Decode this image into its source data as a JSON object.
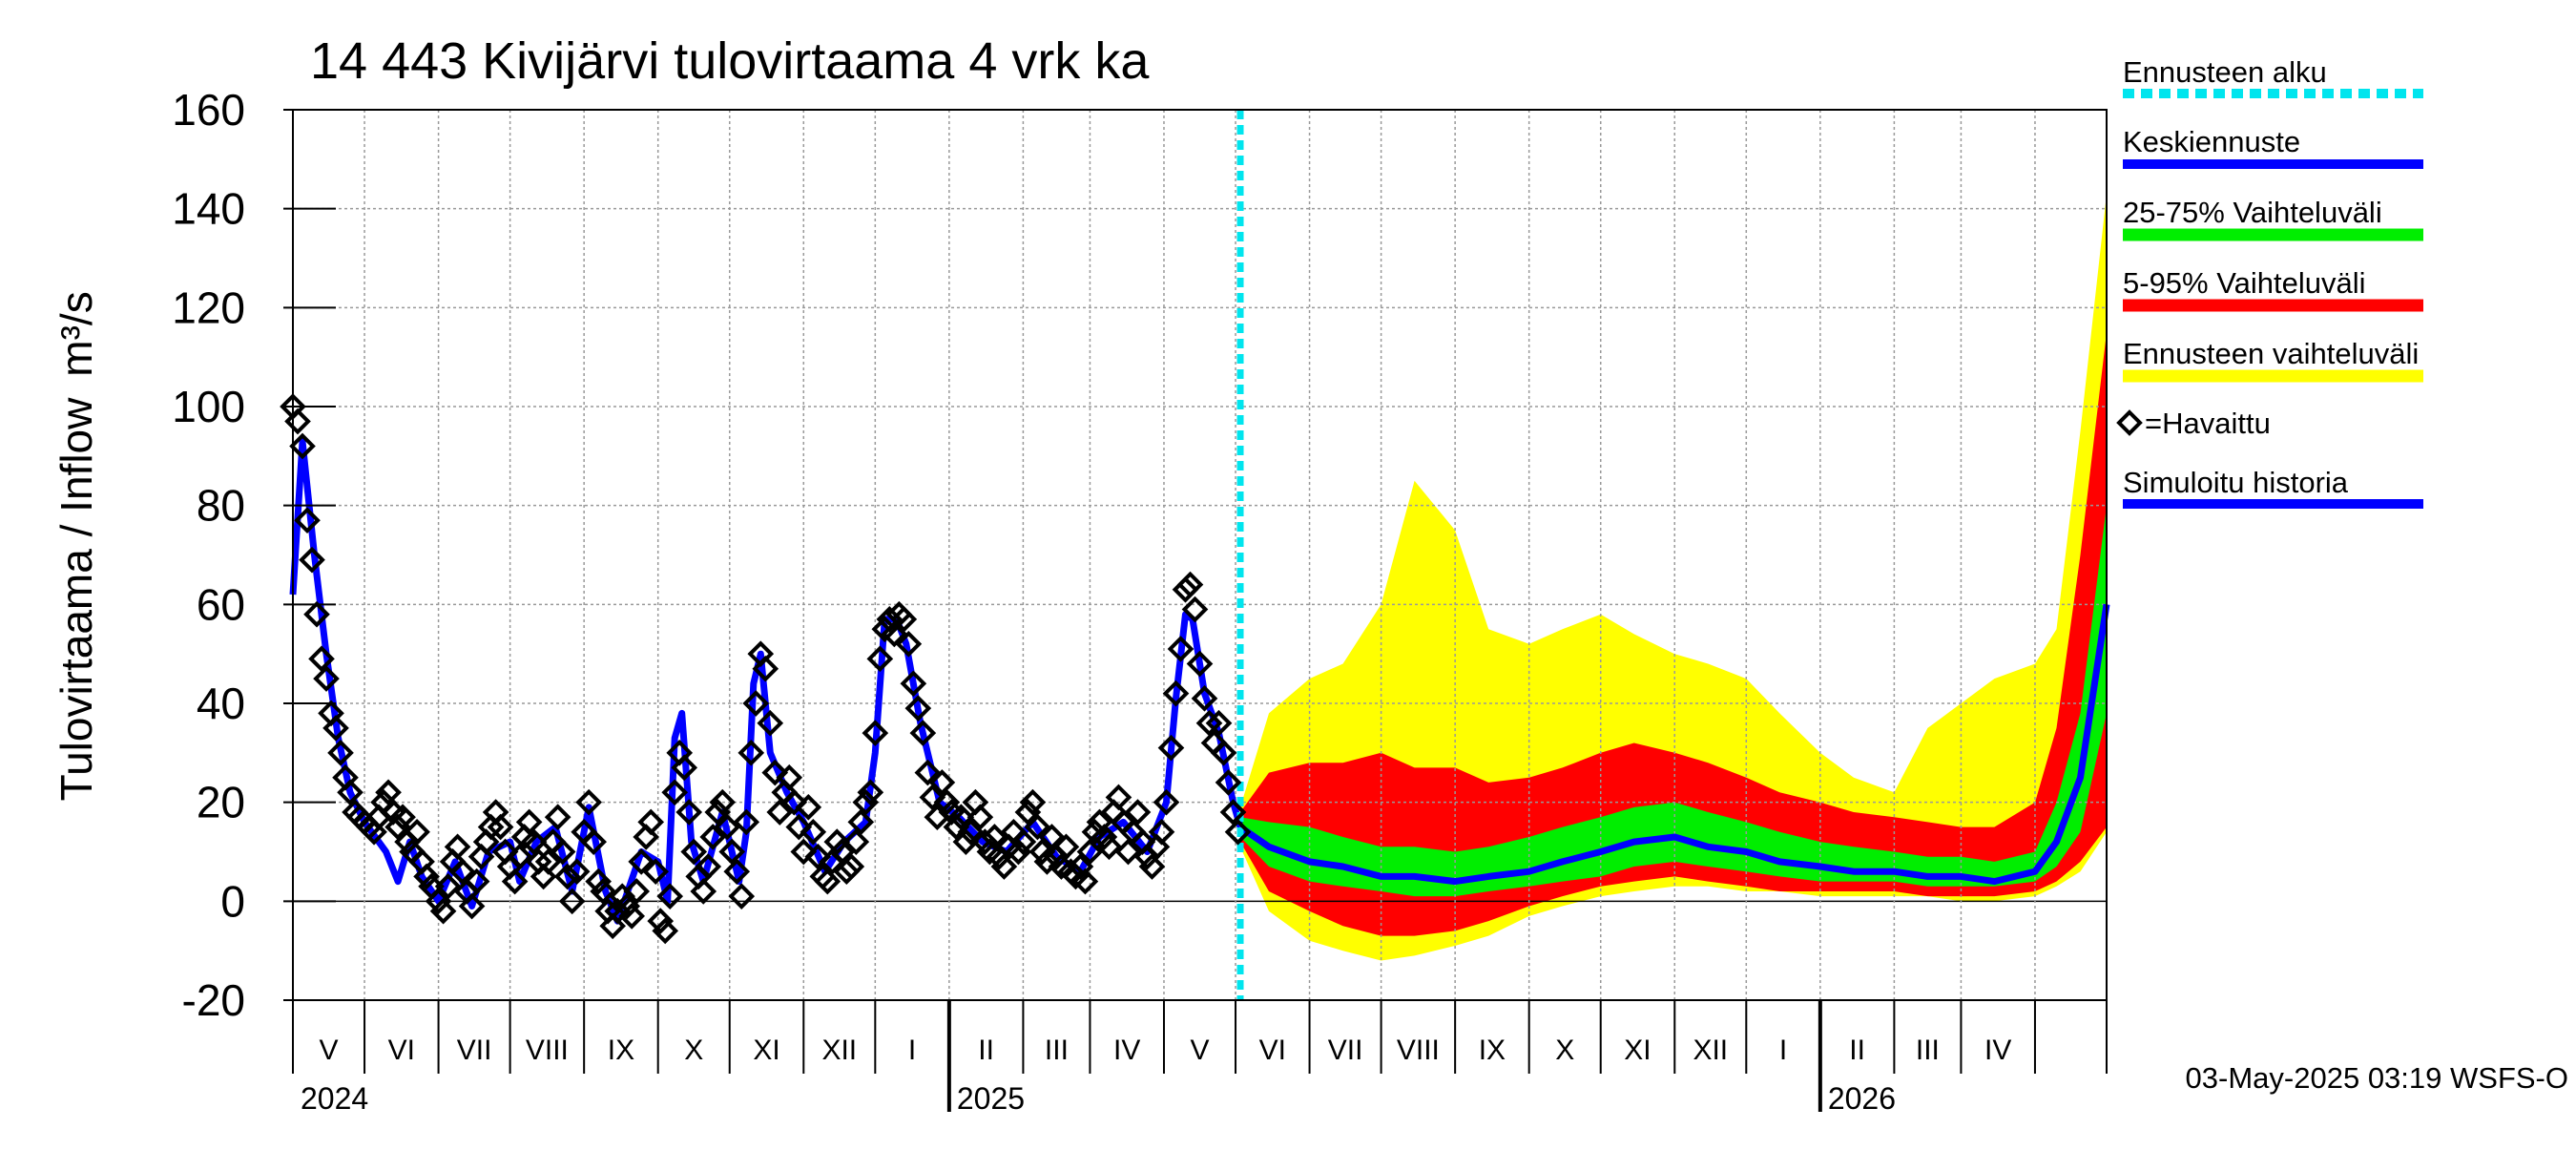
{
  "chart_data": {
    "type": "area",
    "title": "14 443 Kivijärvi tulovirtaama 4 vrk ka",
    "ylabel": "Tulovirtaama / Inflow",
    "yunit": "m³/s",
    "ylim": [
      -20,
      160
    ],
    "yticks": [
      "-20",
      "0",
      "20",
      "40",
      "60",
      "80",
      "100",
      "120",
      "140",
      "160"
    ],
    "xlim": [
      "2024-04-01",
      "2026-05-01"
    ],
    "month_labels": [
      "V",
      "VI",
      "VII",
      "VIII",
      "IX",
      "X",
      "XI",
      "XII",
      "I",
      "II",
      "III",
      "IV",
      "V",
      "VI",
      "VII",
      "VIII",
      "IX",
      "X",
      "XI",
      "XII",
      "I",
      "II",
      "III",
      "IV"
    ],
    "year_labels": [
      "2024",
      "2025",
      "2026"
    ],
    "grid": true,
    "legend_position": "right",
    "forecast_start": "2025-05-03",
    "legend": [
      {
        "label": "Ennusteen alku",
        "color": "#00e5ee",
        "style": "dashed"
      },
      {
        "label": "Keskiennuste",
        "color": "#0000ff",
        "style": "line"
      },
      {
        "label": "25-75% Vaihteluväli",
        "color": "#00ee00",
        "style": "band"
      },
      {
        "label": "5-95% Vaihteluväli",
        "color": "#ff0000",
        "style": "band"
      },
      {
        "label": "Ennusteen vaihteluväli",
        "color": "#ffff00",
        "style": "band"
      },
      {
        "label": "=Havaittu",
        "color": "#000000",
        "style": "marker"
      },
      {
        "label": "Simuloitu historia",
        "color": "#0000ff",
        "style": "line"
      }
    ],
    "footer": "03-May-2025 03:19 WSFS-O",
    "colors": {
      "sim": "#0000ff",
      "median": "#0000ff",
      "p2575": "#00ee00",
      "p595": "#ff0000",
      "full": "#ffff00",
      "forecast_start": "#00e5ee",
      "grid": "#999999"
    },
    "observed": [
      [
        "2024-04-01",
        100
      ],
      [
        "2024-04-03",
        97
      ],
      [
        "2024-04-05",
        92
      ],
      [
        "2024-04-07",
        77
      ],
      [
        "2024-04-09",
        69
      ],
      [
        "2024-04-11",
        58
      ],
      [
        "2024-04-13",
        49
      ],
      [
        "2024-04-15",
        45
      ],
      [
        "2024-04-17",
        38
      ],
      [
        "2024-04-19",
        35
      ],
      [
        "2024-04-21",
        30
      ],
      [
        "2024-04-23",
        25
      ],
      [
        "2024-04-25",
        22
      ],
      [
        "2024-04-27",
        18
      ],
      [
        "2024-04-29",
        17
      ],
      [
        "2024-05-01",
        16
      ],
      [
        "2024-05-03",
        15
      ],
      [
        "2024-05-05",
        14
      ],
      [
        "2024-05-07",
        17
      ],
      [
        "2024-05-09",
        20
      ],
      [
        "2024-05-11",
        22
      ],
      [
        "2024-05-13",
        18
      ],
      [
        "2024-05-15",
        15
      ],
      [
        "2024-05-17",
        17
      ],
      [
        "2024-05-19",
        12
      ],
      [
        "2024-05-21",
        10
      ],
      [
        "2024-05-23",
        14
      ],
      [
        "2024-05-25",
        8
      ],
      [
        "2024-05-27",
        5
      ],
      [
        "2024-05-29",
        3
      ],
      [
        "2024-06-01",
        0
      ],
      [
        "2024-06-03",
        -2
      ],
      [
        "2024-06-05",
        3
      ],
      [
        "2024-06-07",
        8
      ],
      [
        "2024-06-09",
        11
      ],
      [
        "2024-06-11",
        6
      ],
      [
        "2024-06-13",
        2
      ],
      [
        "2024-06-15",
        -1
      ],
      [
        "2024-06-17",
        4
      ],
      [
        "2024-06-19",
        9
      ],
      [
        "2024-06-21",
        12
      ],
      [
        "2024-06-23",
        15
      ],
      [
        "2024-06-25",
        18
      ],
      [
        "2024-06-27",
        15
      ],
      [
        "2024-06-29",
        10
      ],
      [
        "2024-07-01",
        7
      ],
      [
        "2024-07-03",
        4
      ],
      [
        "2024-07-05",
        9
      ],
      [
        "2024-07-07",
        13
      ],
      [
        "2024-07-09",
        16
      ],
      [
        "2024-07-11",
        12
      ],
      [
        "2024-07-13",
        8
      ],
      [
        "2024-07-15",
        5
      ],
      [
        "2024-07-17",
        8
      ],
      [
        "2024-07-19",
        12
      ],
      [
        "2024-07-21",
        17
      ],
      [
        "2024-07-23",
        10
      ],
      [
        "2024-07-25",
        5
      ],
      [
        "2024-07-27",
        0
      ],
      [
        "2024-07-29",
        6
      ],
      [
        "2024-08-01",
        14
      ],
      [
        "2024-08-03",
        20
      ],
      [
        "2024-08-05",
        12
      ],
      [
        "2024-08-07",
        4
      ],
      [
        "2024-08-09",
        2
      ],
      [
        "2024-08-11",
        -2
      ],
      [
        "2024-08-13",
        -5
      ],
      [
        "2024-08-15",
        -2
      ],
      [
        "2024-08-17",
        1
      ],
      [
        "2024-08-19",
        -1
      ],
      [
        "2024-08-21",
        -3
      ],
      [
        "2024-08-23",
        2
      ],
      [
        "2024-08-25",
        8
      ],
      [
        "2024-08-27",
        13
      ],
      [
        "2024-08-29",
        16
      ],
      [
        "2024-08-31",
        6
      ],
      [
        "2024-09-02",
        -4
      ],
      [
        "2024-09-04",
        -6
      ],
      [
        "2024-09-06",
        1
      ],
      [
        "2024-09-08",
        22
      ],
      [
        "2024-09-10",
        30
      ],
      [
        "2024-09-12",
        27
      ],
      [
        "2024-09-14",
        18
      ],
      [
        "2024-09-16",
        10
      ],
      [
        "2024-09-18",
        5
      ],
      [
        "2024-09-20",
        2
      ],
      [
        "2024-09-22",
        7
      ],
      [
        "2024-09-24",
        13
      ],
      [
        "2024-09-26",
        18
      ],
      [
        "2024-09-28",
        20
      ],
      [
        "2024-09-30",
        15
      ],
      [
        "2024-10-02",
        10
      ],
      [
        "2024-10-04",
        6
      ],
      [
        "2024-10-06",
        1
      ],
      [
        "2024-10-08",
        16
      ],
      [
        "2024-10-10",
        30
      ],
      [
        "2024-10-12",
        40
      ],
      [
        "2024-10-14",
        50
      ],
      [
        "2024-10-16",
        47
      ],
      [
        "2024-10-18",
        36
      ],
      [
        "2024-10-20",
        26
      ],
      [
        "2024-10-22",
        18
      ],
      [
        "2024-10-24",
        22
      ],
      [
        "2024-10-26",
        25
      ],
      [
        "2024-10-28",
        20
      ],
      [
        "2024-10-30",
        15
      ],
      [
        "2024-11-01",
        10
      ],
      [
        "2024-11-03",
        19
      ],
      [
        "2024-11-05",
        14
      ],
      [
        "2024-11-07",
        9
      ],
      [
        "2024-11-09",
        5
      ],
      [
        "2024-11-11",
        4
      ],
      [
        "2024-11-13",
        8
      ],
      [
        "2024-11-15",
        12
      ],
      [
        "2024-11-17",
        10
      ],
      [
        "2024-11-19",
        6
      ],
      [
        "2024-11-21",
        7
      ],
      [
        "2024-11-23",
        12
      ],
      [
        "2024-11-25",
        16
      ],
      [
        "2024-11-27",
        20
      ],
      [
        "2024-11-29",
        22
      ],
      [
        "2024-12-01",
        34
      ],
      [
        "2024-12-03",
        49
      ],
      [
        "2024-12-05",
        55
      ],
      [
        "2024-12-07",
        57
      ],
      [
        "2024-12-09",
        54
      ],
      [
        "2024-12-11",
        58
      ],
      [
        "2024-12-13",
        57
      ],
      [
        "2024-12-15",
        52
      ],
      [
        "2024-12-17",
        44
      ],
      [
        "2024-12-19",
        39
      ],
      [
        "2024-12-21",
        34
      ],
      [
        "2024-12-23",
        26
      ],
      [
        "2024-12-25",
        21
      ],
      [
        "2024-12-27",
        17
      ],
      [
        "2024-12-29",
        24
      ],
      [
        "2024-12-31",
        20
      ],
      [
        "2025-01-02",
        18
      ],
      [
        "2025-01-04",
        15
      ],
      [
        "2025-01-06",
        17
      ],
      [
        "2025-01-08",
        12
      ],
      [
        "2025-01-10",
        14
      ],
      [
        "2025-01-12",
        20
      ],
      [
        "2025-01-14",
        17
      ],
      [
        "2025-01-16",
        12
      ],
      [
        "2025-01-18",
        10
      ],
      [
        "2025-01-20",
        13
      ],
      [
        "2025-01-22",
        9
      ],
      [
        "2025-01-24",
        7
      ],
      [
        "2025-01-26",
        11
      ],
      [
        "2025-01-28",
        14
      ],
      [
        "2025-01-30",
        10
      ],
      [
        "2025-02-01",
        12
      ],
      [
        "2025-02-03",
        18
      ],
      [
        "2025-02-05",
        20
      ],
      [
        "2025-02-07",
        15
      ],
      [
        "2025-02-09",
        10
      ],
      [
        "2025-02-11",
        8
      ],
      [
        "2025-02-13",
        13
      ],
      [
        "2025-02-15",
        9
      ],
      [
        "2025-02-17",
        7
      ],
      [
        "2025-02-19",
        11
      ],
      [
        "2025-02-21",
        6
      ],
      [
        "2025-02-23",
        5
      ],
      [
        "2025-02-25",
        7
      ],
      [
        "2025-02-27",
        4
      ],
      [
        "2025-03-01",
        10
      ],
      [
        "2025-03-03",
        14
      ],
      [
        "2025-03-05",
        16
      ],
      [
        "2025-03-07",
        13
      ],
      [
        "2025-03-09",
        11
      ],
      [
        "2025-03-11",
        18
      ],
      [
        "2025-03-13",
        21
      ],
      [
        "2025-03-15",
        16
      ],
      [
        "2025-03-17",
        10
      ],
      [
        "2025-03-19",
        14
      ],
      [
        "2025-03-21",
        18
      ],
      [
        "2025-03-23",
        12
      ],
      [
        "2025-03-25",
        9
      ],
      [
        "2025-03-27",
        7
      ],
      [
        "2025-03-29",
        11
      ],
      [
        "2025-03-31",
        14
      ],
      [
        "2025-04-02",
        20
      ],
      [
        "2025-04-04",
        31
      ],
      [
        "2025-04-06",
        42
      ],
      [
        "2025-04-08",
        51
      ],
      [
        "2025-04-10",
        63
      ],
      [
        "2025-04-12",
        64
      ],
      [
        "2025-04-14",
        59
      ],
      [
        "2025-04-16",
        48
      ],
      [
        "2025-04-18",
        41
      ],
      [
        "2025-04-20",
        36
      ],
      [
        "2025-04-22",
        32
      ],
      [
        "2025-04-24",
        36
      ],
      [
        "2025-04-26",
        30
      ],
      [
        "2025-04-28",
        24
      ],
      [
        "2025-04-30",
        18
      ],
      [
        "2025-05-02",
        14
      ]
    ],
    "simulated": [
      [
        "2024-04-01",
        62
      ],
      [
        "2024-04-05",
        93
      ],
      [
        "2024-04-10",
        70
      ],
      [
        "2024-04-15",
        50
      ],
      [
        "2024-04-20",
        33
      ],
      [
        "2024-04-25",
        22
      ],
      [
        "2024-05-01",
        16
      ],
      [
        "2024-05-10",
        10
      ],
      [
        "2024-05-15",
        4
      ],
      [
        "2024-05-20",
        12
      ],
      [
        "2024-05-25",
        5
      ],
      [
        "2024-06-01",
        0
      ],
      [
        "2024-06-08",
        8
      ],
      [
        "2024-06-15",
        -1
      ],
      [
        "2024-06-22",
        10
      ],
      [
        "2024-07-01",
        12
      ],
      [
        "2024-07-05",
        4
      ],
      [
        "2024-07-12",
        12
      ],
      [
        "2024-07-20",
        15
      ],
      [
        "2024-07-27",
        2
      ],
      [
        "2024-08-03",
        19
      ],
      [
        "2024-08-10",
        2
      ],
      [
        "2024-08-15",
        -4
      ],
      [
        "2024-08-25",
        10
      ],
      [
        "2024-09-01",
        8
      ],
      [
        "2024-09-05",
        0
      ],
      [
        "2024-09-08",
        33
      ],
      [
        "2024-09-11",
        38
      ],
      [
        "2024-09-15",
        12
      ],
      [
        "2024-09-20",
        4
      ],
      [
        "2024-09-28",
        18
      ],
      [
        "2024-10-05",
        4
      ],
      [
        "2024-10-08",
        14
      ],
      [
        "2024-10-11",
        44
      ],
      [
        "2024-10-14",
        50
      ],
      [
        "2024-10-18",
        30
      ],
      [
        "2024-10-25",
        22
      ],
      [
        "2024-11-01",
        16
      ],
      [
        "2024-11-10",
        6
      ],
      [
        "2024-11-18",
        12
      ],
      [
        "2024-11-27",
        16
      ],
      [
        "2024-12-01",
        30
      ],
      [
        "2024-12-05",
        57
      ],
      [
        "2024-12-10",
        57
      ],
      [
        "2024-12-14",
        52
      ],
      [
        "2024-12-20",
        36
      ],
      [
        "2024-12-28",
        20
      ],
      [
        "2025-01-05",
        17
      ],
      [
        "2025-01-15",
        12
      ],
      [
        "2025-01-25",
        10
      ],
      [
        "2025-02-05",
        16
      ],
      [
        "2025-02-15",
        9
      ],
      [
        "2025-02-25",
        6
      ],
      [
        "2025-03-05",
        13
      ],
      [
        "2025-03-15",
        16
      ],
      [
        "2025-03-25",
        10
      ],
      [
        "2025-04-02",
        20
      ],
      [
        "2025-04-06",
        41
      ],
      [
        "2025-04-10",
        58
      ],
      [
        "2025-04-13",
        57
      ],
      [
        "2025-04-18",
        42
      ],
      [
        "2025-04-24",
        34
      ],
      [
        "2025-04-30",
        20
      ],
      [
        "2025-05-03",
        15
      ]
    ],
    "forecast_x": [
      "2025-05-03",
      "2025-05-15",
      "2025-06-01",
      "2025-06-15",
      "2025-07-01",
      "2025-07-15",
      "2025-08-01",
      "2025-08-15",
      "2025-09-01",
      "2025-09-15",
      "2025-10-01",
      "2025-10-15",
      "2025-11-01",
      "2025-11-15",
      "2025-12-01",
      "2025-12-15",
      "2026-01-01",
      "2026-01-15",
      "2026-02-01",
      "2026-02-15",
      "2026-03-01",
      "2026-03-15",
      "2026-04-01",
      "2026-04-10",
      "2026-04-20",
      "2026-05-01"
    ],
    "forecast_median": [
      15,
      11,
      8,
      7,
      5,
      5,
      4,
      5,
      6,
      8,
      10,
      12,
      13,
      11,
      10,
      8,
      7,
      6,
      6,
      5,
      5,
      4,
      6,
      12,
      25,
      60
    ],
    "forecast_p25": [
      13,
      7,
      4,
      3,
      2,
      1,
      1,
      2,
      3,
      4,
      5,
      7,
      8,
      7,
      6,
      5,
      4,
      4,
      4,
      3,
      3,
      3,
      4,
      7,
      14,
      38
    ],
    "forecast_p75": [
      17,
      16,
      15,
      13,
      11,
      11,
      10,
      11,
      13,
      15,
      17,
      19,
      20,
      18,
      16,
      14,
      12,
      11,
      10,
      9,
      9,
      8,
      10,
      20,
      38,
      80
    ],
    "forecast_p5": [
      12,
      2,
      -2,
      -5,
      -7,
      -7,
      -6,
      -4,
      -1,
      1,
      3,
      4,
      5,
      4,
      3,
      2,
      2,
      2,
      2,
      1,
      1,
      1,
      2,
      4,
      8,
      15
    ],
    "forecast_p95": [
      18,
      26,
      28,
      28,
      30,
      27,
      27,
      24,
      25,
      27,
      30,
      32,
      30,
      28,
      25,
      22,
      20,
      18,
      17,
      16,
      15,
      15,
      20,
      35,
      70,
      115
    ],
    "forecast_min": [
      11,
      -2,
      -8,
      -10,
      -12,
      -11,
      -9,
      -7,
      -3,
      -1,
      1,
      2,
      3,
      3,
      2,
      2,
      1,
      1,
      1,
      1,
      0,
      0,
      1,
      3,
      6,
      14
    ],
    "forecast_max": [
      19,
      38,
      45,
      48,
      60,
      85,
      75,
      55,
      52,
      55,
      58,
      54,
      50,
      48,
      45,
      38,
      30,
      25,
      22,
      35,
      40,
      45,
      48,
      55,
      95,
      143
    ]
  }
}
